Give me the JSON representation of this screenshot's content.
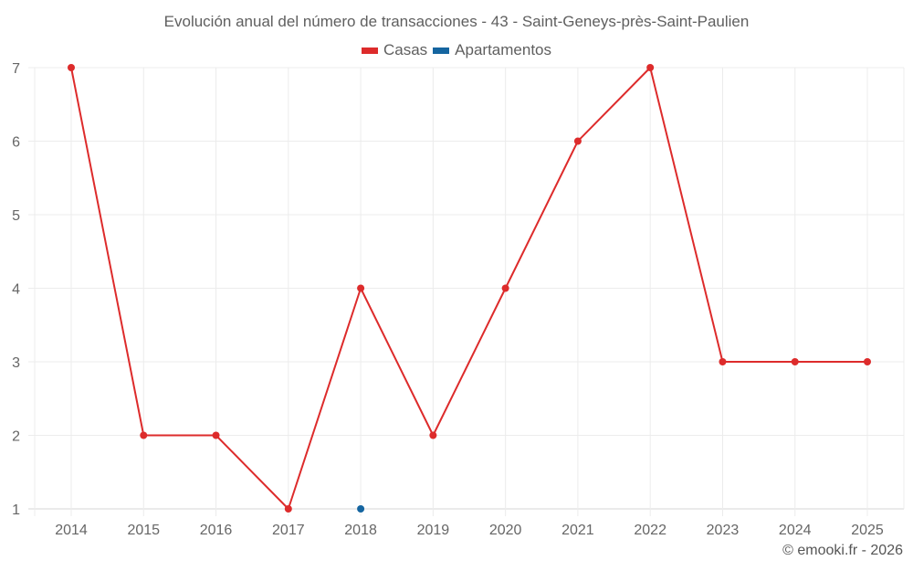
{
  "title": "Evolución anual del número de transacciones - 43 - Saint-Geneys-près-Saint-Paulien",
  "legend": [
    {
      "label": "Casas",
      "color": "#dd2b2b"
    },
    {
      "label": "Apartamentos",
      "color": "#1565a0"
    }
  ],
  "credit": "© emooki.fr - 2026",
  "chart_data": {
    "type": "line",
    "title": "Evolución anual del número de transacciones - 43 - Saint-Geneys-près-Saint-Paulien",
    "xlabel": "",
    "ylabel": "",
    "categories": [
      "2014",
      "2015",
      "2016",
      "2017",
      "2018",
      "2019",
      "2020",
      "2021",
      "2022",
      "2023",
      "2024",
      "2025"
    ],
    "series": [
      {
        "name": "Casas",
        "color": "#dd2b2b",
        "values": [
          7,
          2,
          2,
          1,
          4,
          2,
          4,
          6,
          7,
          3,
          3,
          3
        ]
      },
      {
        "name": "Apartamentos",
        "color": "#1565a0",
        "values": [
          null,
          null,
          null,
          null,
          1,
          null,
          null,
          null,
          null,
          null,
          null,
          null
        ]
      }
    ],
    "yticks": [
      1,
      2,
      3,
      4,
      5,
      6,
      7
    ],
    "ylim": [
      1,
      7
    ],
    "grid": true,
    "legend_position": "top"
  }
}
